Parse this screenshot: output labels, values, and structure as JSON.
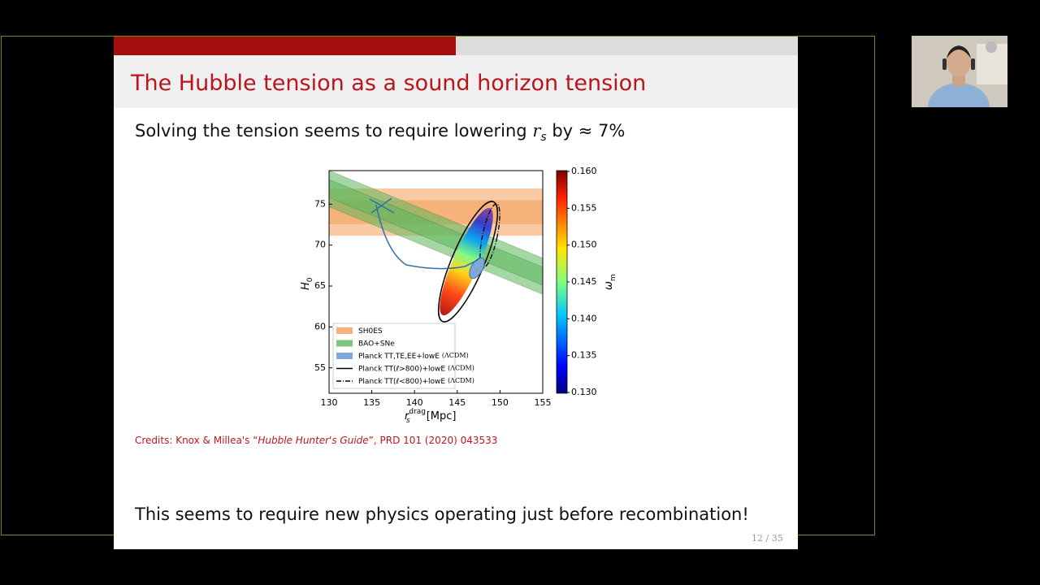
{
  "slide": {
    "title": "The Hubble tension as a sound horizon tension",
    "subtitle": {
      "before": "Solving the tension seems to require lowering ",
      "symbol": "r",
      "subscript": "s",
      "after": " by ≈ 7%"
    },
    "figure": {
      "xlim": [
        130,
        155
      ],
      "ylim": [
        51.9,
        79.1
      ],
      "xticks": [
        130,
        135,
        140,
        145,
        150,
        155
      ],
      "yticks": [
        55,
        60,
        65,
        70,
        75
      ],
      "xlabel": {
        "symbol": "r",
        "subscript": "s",
        "superscript": "drag",
        "unit": "[Mpc]"
      },
      "ylabel": {
        "symbol": "H",
        "subscript": "0"
      },
      "colorbar": {
        "label": {
          "symbol": "ω",
          "subscript": "m"
        },
        "lim": [
          0.13,
          0.16
        ],
        "ticks": [
          {
            "value": 0.16,
            "label": "0.160"
          },
          {
            "value": 0.155,
            "label": "0.155"
          },
          {
            "value": 0.15,
            "label": "0.150"
          },
          {
            "value": 0.145,
            "label": "0.145"
          },
          {
            "value": 0.14,
            "label": "0.140"
          },
          {
            "value": 0.135,
            "label": "0.135"
          },
          {
            "value": 0.13,
            "label": "0.130"
          }
        ]
      },
      "sh0es": {
        "h0": 74.03,
        "sigma": 1.42,
        "color": "#f5a05a"
      },
      "bao_sne": {
        "x": [
          130,
          155
        ],
        "h0": [
          76.9,
          66.2
        ],
        "sigma": 1.1,
        "color": "#5cb85c"
      },
      "legend": [
        {
          "label": "SH0ES"
        },
        {
          "label": "BAO+SNe"
        },
        {
          "label": "Planck TT,TE,EE+lowE",
          "note": "(ΛCDM)"
        },
        {
          "label": "Planck TT(ℓ>800)+lowE",
          "note": "(ΛCDM)"
        },
        {
          "label": "Planck TT(ℓ<800)+lowE",
          "note": "(ΛCDM)"
        }
      ]
    },
    "credits": {
      "before": "Credits: Knox & Millea's “",
      "italic": "Hubble Hunter's Guide",
      "after": "”, PRD 101 (2020) 043533"
    },
    "conclusion": "This seems to require new physics operating just before recombination!",
    "page_number": "12 / 35"
  }
}
